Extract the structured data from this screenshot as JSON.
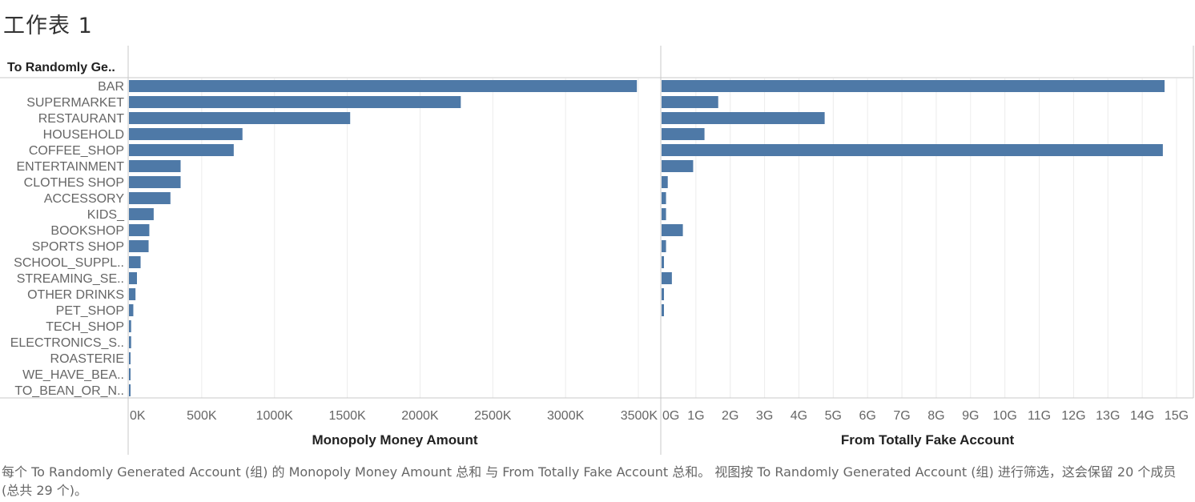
{
  "sheet_title": "工作表 1",
  "row_header": "To Randomly Ge..",
  "caption": "每个 To Randomly Generated Account (组) 的 Monopoly Money Amount 总和 与 From Totally Fake Account 总和。 视图按 To Randomly Generated Account (组) 进行筛选，这会保留 20 个成员(总共 29 个)。",
  "colors": {
    "bar": "#4e79a7",
    "grid": "#ececec",
    "axis": "#c8c8c8"
  },
  "chart_data": [
    {
      "type": "bar",
      "orientation": "horizontal",
      "xlabel": "Monopoly Money Amount",
      "xlim": [
        0,
        3500000
      ],
      "ticks": [
        0,
        500000,
        1000000,
        1500000,
        2000000,
        2500000,
        3000000,
        3500000
      ],
      "tick_labels": [
        "0K",
        "500K",
        "1000K",
        "1500K",
        "2000K",
        "2500K",
        "3000K",
        "3500K"
      ],
      "categories": [
        "BAR",
        "SUPERMARKET",
        "RESTAURANT",
        "HOUSEHOLD",
        "COFFEE_SHOP",
        "ENTERTAINMENT",
        "CLOTHES SHOP",
        "ACCESSORY",
        "KIDS_",
        "BOOKSHOP",
        "SPORTS SHOP",
        "SCHOOL_SUPPL..",
        "STREAMING_SE..",
        "OTHER DRINKS",
        "PET_SHOP",
        "TECH_SHOP",
        "ELECTRONICS_S..",
        "ROASTERIE",
        "WE_HAVE_BEA..",
        "TO_BEAN_OR_N.."
      ],
      "values": [
        3490000,
        2280000,
        1520000,
        780000,
        720000,
        355000,
        355000,
        285000,
        170000,
        140000,
        135000,
        80000,
        55000,
        45000,
        30000,
        15000,
        15000,
        10000,
        5000,
        5000
      ]
    },
    {
      "type": "bar",
      "orientation": "horizontal",
      "xlabel": "From Totally Fake Account",
      "xlim": [
        0,
        15000000000
      ],
      "ticks": [
        0,
        1000000000,
        2000000000,
        3000000000,
        4000000000,
        5000000000,
        6000000000,
        7000000000,
        8000000000,
        9000000000,
        10000000000,
        11000000000,
        12000000000,
        13000000000,
        14000000000,
        15000000000
      ],
      "tick_labels": [
        "0G",
        "1G",
        "2G",
        "3G",
        "4G",
        "5G",
        "6G",
        "7G",
        "8G",
        "9G",
        "10G",
        "11G",
        "12G",
        "13G",
        "14G",
        "15G"
      ],
      "categories": [
        "BAR",
        "SUPERMARKET",
        "RESTAURANT",
        "HOUSEHOLD",
        "COFFEE_SHOP",
        "ENTERTAINMENT",
        "CLOTHES SHOP",
        "ACCESSORY",
        "KIDS_",
        "BOOKSHOP",
        "SPORTS SHOP",
        "SCHOOL_SUPPL..",
        "STREAMING_SE..",
        "OTHER DRINKS",
        "PET_SHOP",
        "TECH_SHOP",
        "ELECTRONICS_S..",
        "ROASTERIE",
        "WE_HAVE_BEA..",
        "TO_BEAN_OR_N.."
      ],
      "values": [
        14650000000,
        1650000000,
        4750000000,
        1250000000,
        14600000000,
        920000000,
        180000000,
        130000000,
        130000000,
        620000000,
        130000000,
        70000000,
        300000000,
        70000000,
        70000000,
        0,
        0,
        0,
        0,
        0
      ]
    }
  ]
}
